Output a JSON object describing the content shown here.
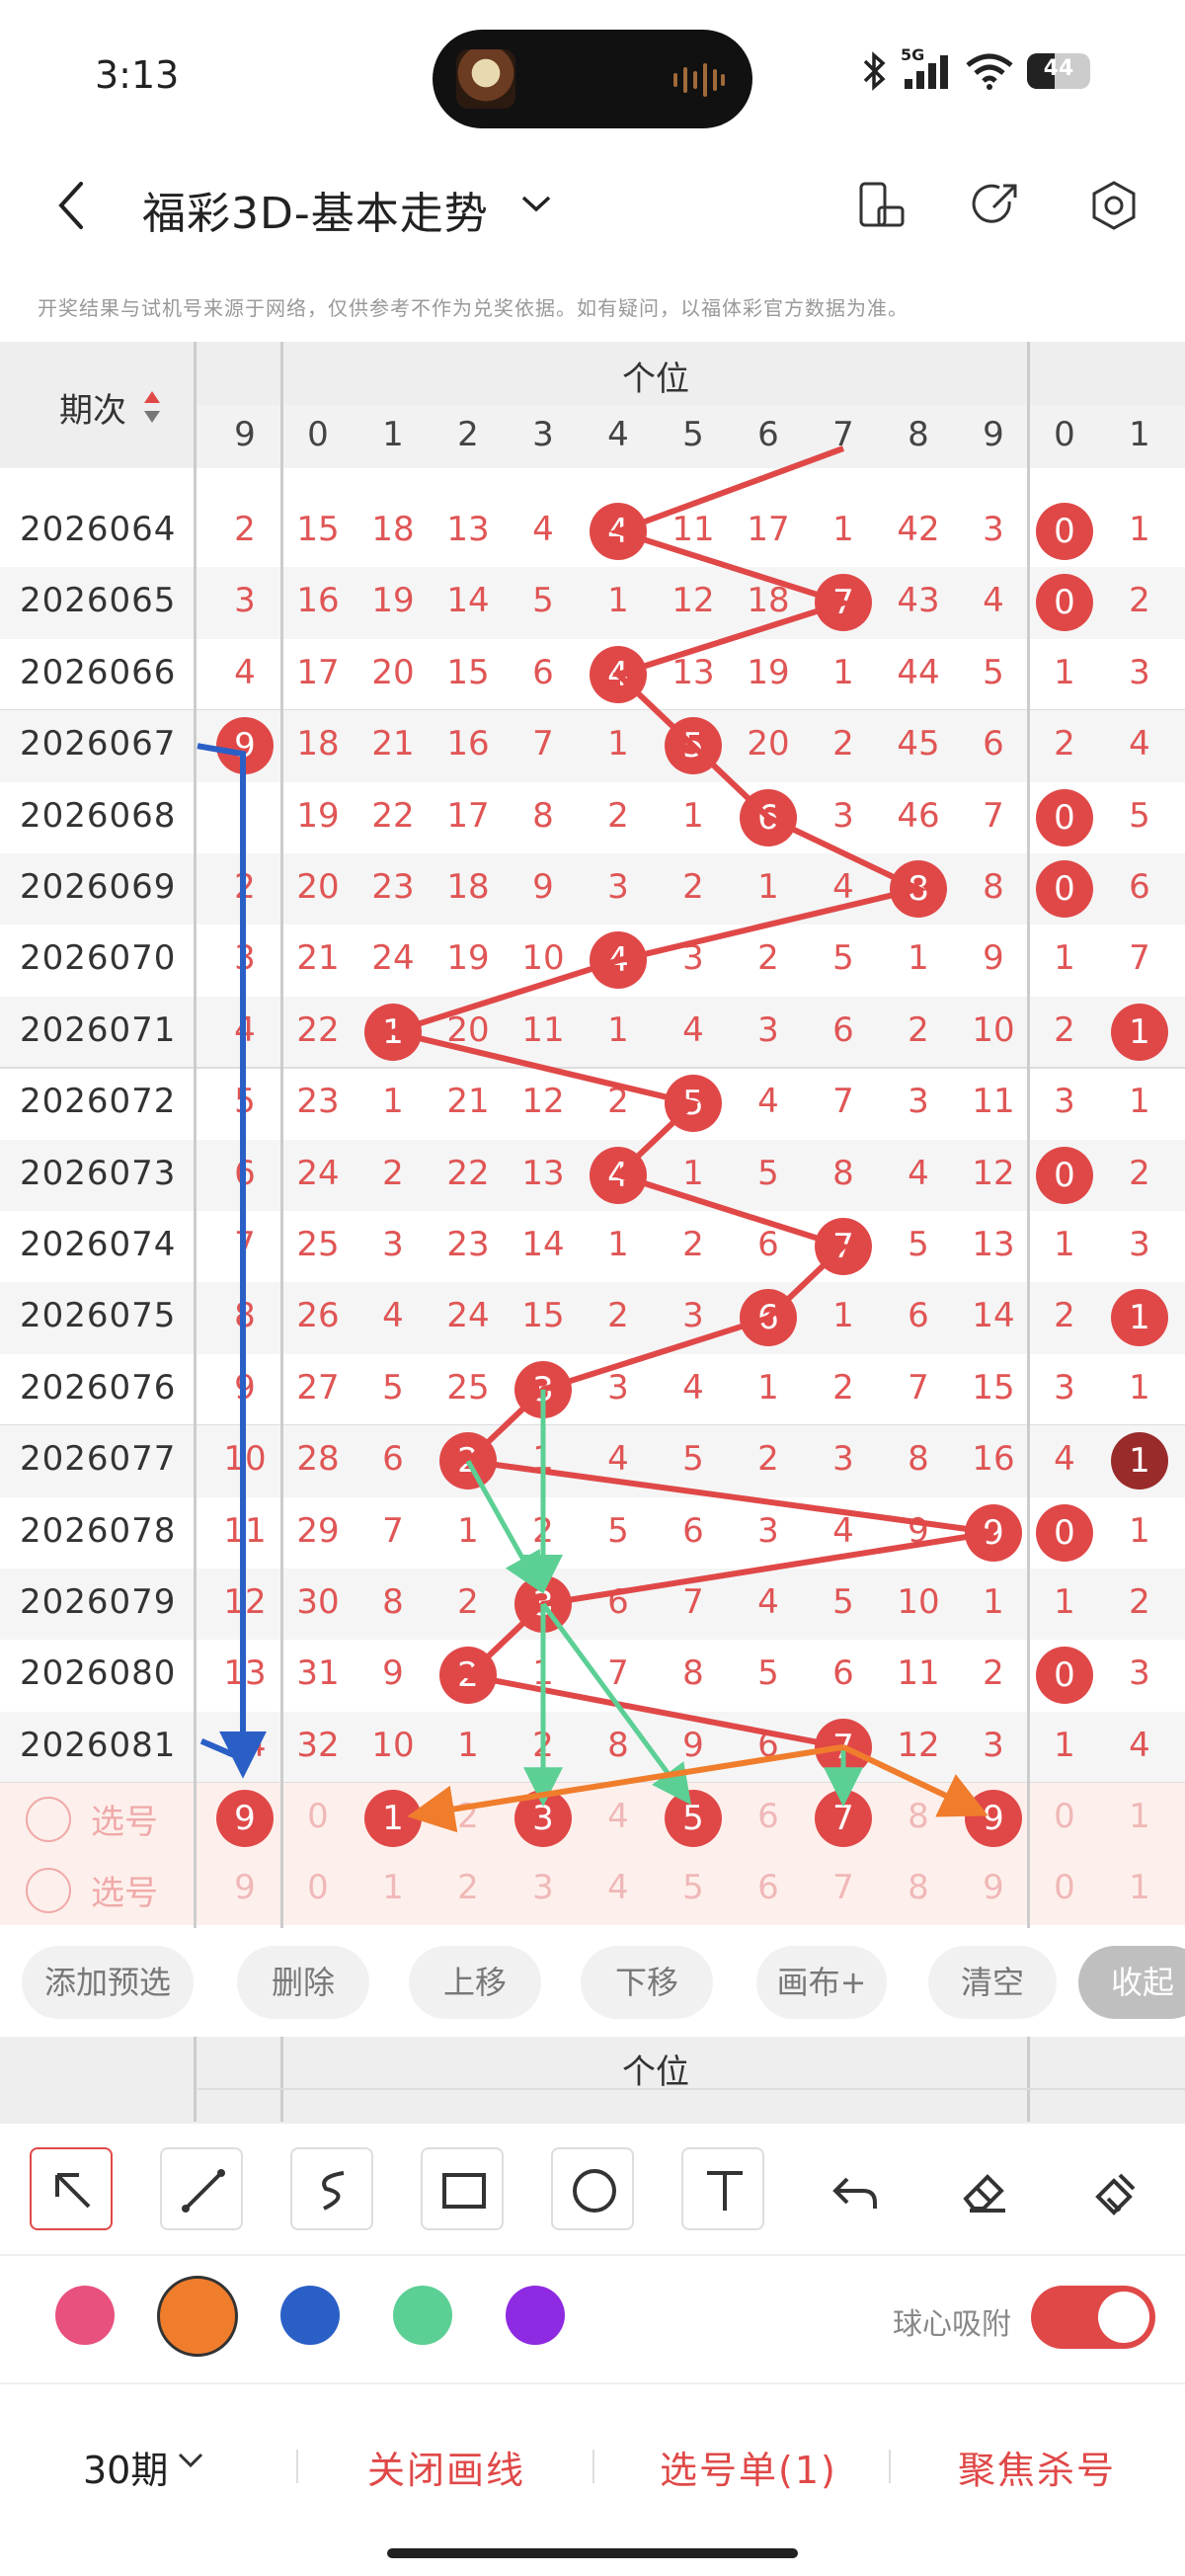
{
  "status": {
    "time": "3:13",
    "network": "5G",
    "battery": "44"
  },
  "header": {
    "title": "福彩3D-基本走势"
  },
  "notice": "开奖结果与试机号来源于网络，仅供参考不作为兑奖依据。如有疑问，以福体彩官方数据为准。",
  "table": {
    "issue_header": "期次",
    "group_header": "个位",
    "columns": [
      "9",
      "0",
      "1",
      "2",
      "3",
      "4",
      "5",
      "6",
      "7",
      "8",
      "9",
      "0",
      "1"
    ],
    "rows": [
      {
        "issue": "2026064",
        "cells": [
          "2",
          "15",
          "18",
          "13",
          "4",
          "4",
          "11",
          "17",
          "1",
          "42",
          "3",
          "0",
          "1"
        ],
        "hit": 5,
        "hit2": 11
      },
      {
        "issue": "2026065",
        "cells": [
          "3",
          "16",
          "19",
          "14",
          "5",
          "1",
          "12",
          "18",
          "7",
          "43",
          "4",
          "0",
          "2"
        ],
        "hit": 8,
        "hit2": 11
      },
      {
        "issue": "2026066",
        "cells": [
          "4",
          "17",
          "20",
          "15",
          "6",
          "4",
          "13",
          "19",
          "1",
          "44",
          "5",
          "1",
          "3"
        ],
        "hit": 5
      },
      {
        "issue": "2026067",
        "cells": [
          "9",
          "18",
          "21",
          "16",
          "7",
          "1",
          "5",
          "20",
          "2",
          "45",
          "6",
          "2",
          "4"
        ],
        "hit": 6,
        "hitPre": 0
      },
      {
        "issue": "2026068",
        "cells": [
          "",
          "19",
          "22",
          "17",
          "8",
          "2",
          "1",
          "6",
          "3",
          "46",
          "7",
          "0",
          "5"
        ],
        "hit": 7,
        "hit2": 11
      },
      {
        "issue": "2026069",
        "cells": [
          "2",
          "20",
          "23",
          "18",
          "9",
          "3",
          "2",
          "1",
          "4",
          "8",
          "8",
          "0",
          "6"
        ],
        "hit": 9,
        "hit2": 11
      },
      {
        "issue": "2026070",
        "cells": [
          "3",
          "21",
          "24",
          "19",
          "10",
          "4",
          "3",
          "2",
          "5",
          "1",
          "9",
          "1",
          "7"
        ],
        "hit": 5
      },
      {
        "issue": "2026071",
        "cells": [
          "4",
          "22",
          "1",
          "20",
          "11",
          "1",
          "4",
          "3",
          "6",
          "2",
          "10",
          "2",
          "1"
        ],
        "hit": 2,
        "hit2": 12
      },
      {
        "issue": "2026072",
        "cells": [
          "5",
          "23",
          "1",
          "21",
          "12",
          "2",
          "5",
          "4",
          "7",
          "3",
          "11",
          "3",
          "1"
        ],
        "hit": 6
      },
      {
        "issue": "2026073",
        "cells": [
          "6",
          "24",
          "2",
          "22",
          "13",
          "4",
          "1",
          "5",
          "8",
          "4",
          "12",
          "0",
          "2"
        ],
        "hit": 5,
        "hit2": 11
      },
      {
        "issue": "2026074",
        "cells": [
          "7",
          "25",
          "3",
          "23",
          "14",
          "1",
          "2",
          "6",
          "7",
          "5",
          "13",
          "1",
          "3"
        ],
        "hit": 8
      },
      {
        "issue": "2026075",
        "cells": [
          "8",
          "26",
          "4",
          "24",
          "15",
          "2",
          "3",
          "6",
          "1",
          "6",
          "14",
          "2",
          "1"
        ],
        "hit": 7,
        "hit2": 12
      },
      {
        "issue": "2026076",
        "cells": [
          "9",
          "27",
          "5",
          "25",
          "3",
          "3",
          "4",
          "1",
          "2",
          "7",
          "15",
          "3",
          "1"
        ],
        "hit": 4
      },
      {
        "issue": "2026077",
        "cells": [
          "10",
          "28",
          "6",
          "2",
          "1",
          "4",
          "5",
          "2",
          "3",
          "8",
          "16",
          "4",
          "1"
        ],
        "hit": 3,
        "hitDark": 12
      },
      {
        "issue": "2026078",
        "cells": [
          "11",
          "29",
          "7",
          "1",
          "2",
          "5",
          "6",
          "3",
          "4",
          "9",
          "9",
          "0",
          "1"
        ],
        "hit": 10,
        "hit2": 11
      },
      {
        "issue": "2026079",
        "cells": [
          "12",
          "30",
          "8",
          "2",
          "3",
          "6",
          "7",
          "4",
          "5",
          "10",
          "1",
          "1",
          "2"
        ],
        "hit": 4
      },
      {
        "issue": "2026080",
        "cells": [
          "13",
          "31",
          "9",
          "2",
          "1",
          "7",
          "8",
          "5",
          "6",
          "11",
          "2",
          "0",
          "3"
        ],
        "hit": 3,
        "hit2": 11
      },
      {
        "issue": "2026081",
        "cells": [
          "14",
          "32",
          "10",
          "1",
          "2",
          "8",
          "9",
          "6",
          "7",
          "12",
          "3",
          "1",
          "4"
        ],
        "hit": 8
      }
    ],
    "select_label": "选号",
    "select_rows": [
      {
        "cells": [
          "9",
          "0",
          "1",
          "2",
          "3",
          "4",
          "5",
          "6",
          "7",
          "8",
          "9",
          "0",
          "1"
        ],
        "picked": [
          0,
          2,
          4,
          6,
          8,
          10
        ]
      },
      {
        "cells": [
          "9",
          "0",
          "1",
          "2",
          "3",
          "4",
          "5",
          "6",
          "7",
          "8",
          "9",
          "0",
          "1"
        ],
        "picked": []
      }
    ]
  },
  "buttons": [
    "添加预选",
    "删除",
    "上移",
    "下移",
    "画布+",
    "清空",
    "收起"
  ],
  "tools": [
    "arrow-tool",
    "line-tool",
    "freehand-tool",
    "rectangle-tool",
    "circle-tool",
    "text-tool",
    "undo-tool",
    "eraser-tool",
    "clear-tool"
  ],
  "colors": [
    "#e8507e",
    "#f07d2c",
    "#2a5fc6",
    "#5ccf95",
    "#8e2be2"
  ],
  "snap_label": "球心吸附",
  "bottom": {
    "period": "30期",
    "close_draw": "关闭画线",
    "selection": "选号单(1)",
    "focus": "聚焦杀号"
  }
}
